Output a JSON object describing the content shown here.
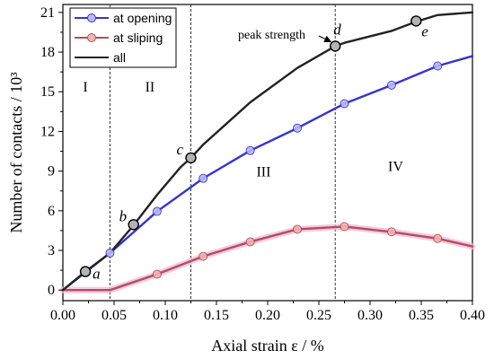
{
  "chart_data": {
    "type": "line",
    "xlabel": "Axial strain ε / %",
    "ylabel": "Number of contacts / 10³",
    "xlim": [
      0,
      0.4
    ],
    "ylim": [
      -0.8,
      21.6
    ],
    "x_ticks": [
      0.0,
      0.05,
      0.1,
      0.15,
      0.2,
      0.25,
      0.3,
      0.35,
      0.4
    ],
    "x_tick_labels": [
      "0.00",
      "0.05",
      "0.10",
      "0.15",
      "0.20",
      "0.25",
      "0.30",
      "0.35",
      "0.40"
    ],
    "y_ticks": [
      0,
      3,
      6,
      9,
      12,
      15,
      18,
      21
    ],
    "y_tick_labels": [
      "0",
      "3",
      "6",
      "9",
      "12",
      "15",
      "18",
      "21"
    ],
    "grid": false,
    "legend_position": "top-left",
    "series": [
      {
        "name": "at opening",
        "color": "#3333d6",
        "marker_fill": "#b9b9ef",
        "x": [
          0.0,
          0.046,
          0.092,
          0.137,
          0.183,
          0.229,
          0.275,
          0.321,
          0.366,
          0.4
        ],
        "y": [
          0.0,
          2.8,
          5.95,
          8.45,
          10.55,
          12.25,
          14.1,
          15.5,
          16.95,
          17.7
        ],
        "marker_indices": [
          1,
          2,
          3,
          4,
          5,
          6,
          7,
          8
        ]
      },
      {
        "name": "at sliping",
        "color": "#b25050",
        "marker_fill": "#f0b4b4",
        "x": [
          0.0,
          0.046,
          0.092,
          0.137,
          0.183,
          0.229,
          0.275,
          0.321,
          0.366,
          0.4
        ],
        "y": [
          0.0,
          0.0,
          1.2,
          2.55,
          3.65,
          4.6,
          4.8,
          4.4,
          3.9,
          3.3
        ],
        "marker_indices": [
          2,
          3,
          4,
          5,
          6,
          7,
          8
        ]
      },
      {
        "name": "all",
        "color": "#222222",
        "x": [
          0.0,
          0.022,
          0.046,
          0.069,
          0.092,
          0.115,
          0.125,
          0.137,
          0.183,
          0.229,
          0.266,
          0.275,
          0.321,
          0.345,
          0.366,
          0.4
        ],
        "y": [
          0.0,
          1.4,
          2.8,
          4.9,
          7.2,
          9.3,
          10.0,
          11.0,
          14.2,
          16.8,
          18.45,
          18.7,
          19.6,
          20.3,
          20.8,
          21.0
        ]
      }
    ],
    "key_points": [
      {
        "label": "a",
        "x": 0.022,
        "y": 1.4
      },
      {
        "label": "b",
        "x": 0.069,
        "y": 4.95
      },
      {
        "label": "c",
        "x": 0.125,
        "y": 10.0
      },
      {
        "label": "d",
        "x": 0.266,
        "y": 18.45
      },
      {
        "label": "e",
        "x": 0.345,
        "y": 20.35
      }
    ],
    "stage_boundaries": [
      0.046,
      0.125,
      0.266
    ],
    "regions": [
      {
        "label": "I",
        "x": 0.022,
        "y": 15.0
      },
      {
        "label": "II",
        "x": 0.085,
        "y": 15.0
      },
      {
        "label": "III",
        "x": 0.196,
        "y": 8.6
      },
      {
        "label": "IV",
        "x": 0.325,
        "y": 9.0
      }
    ],
    "annotation": {
      "text": "peak strength",
      "arrow_to_x": 0.266,
      "arrow_to_y": 18.45
    }
  }
}
